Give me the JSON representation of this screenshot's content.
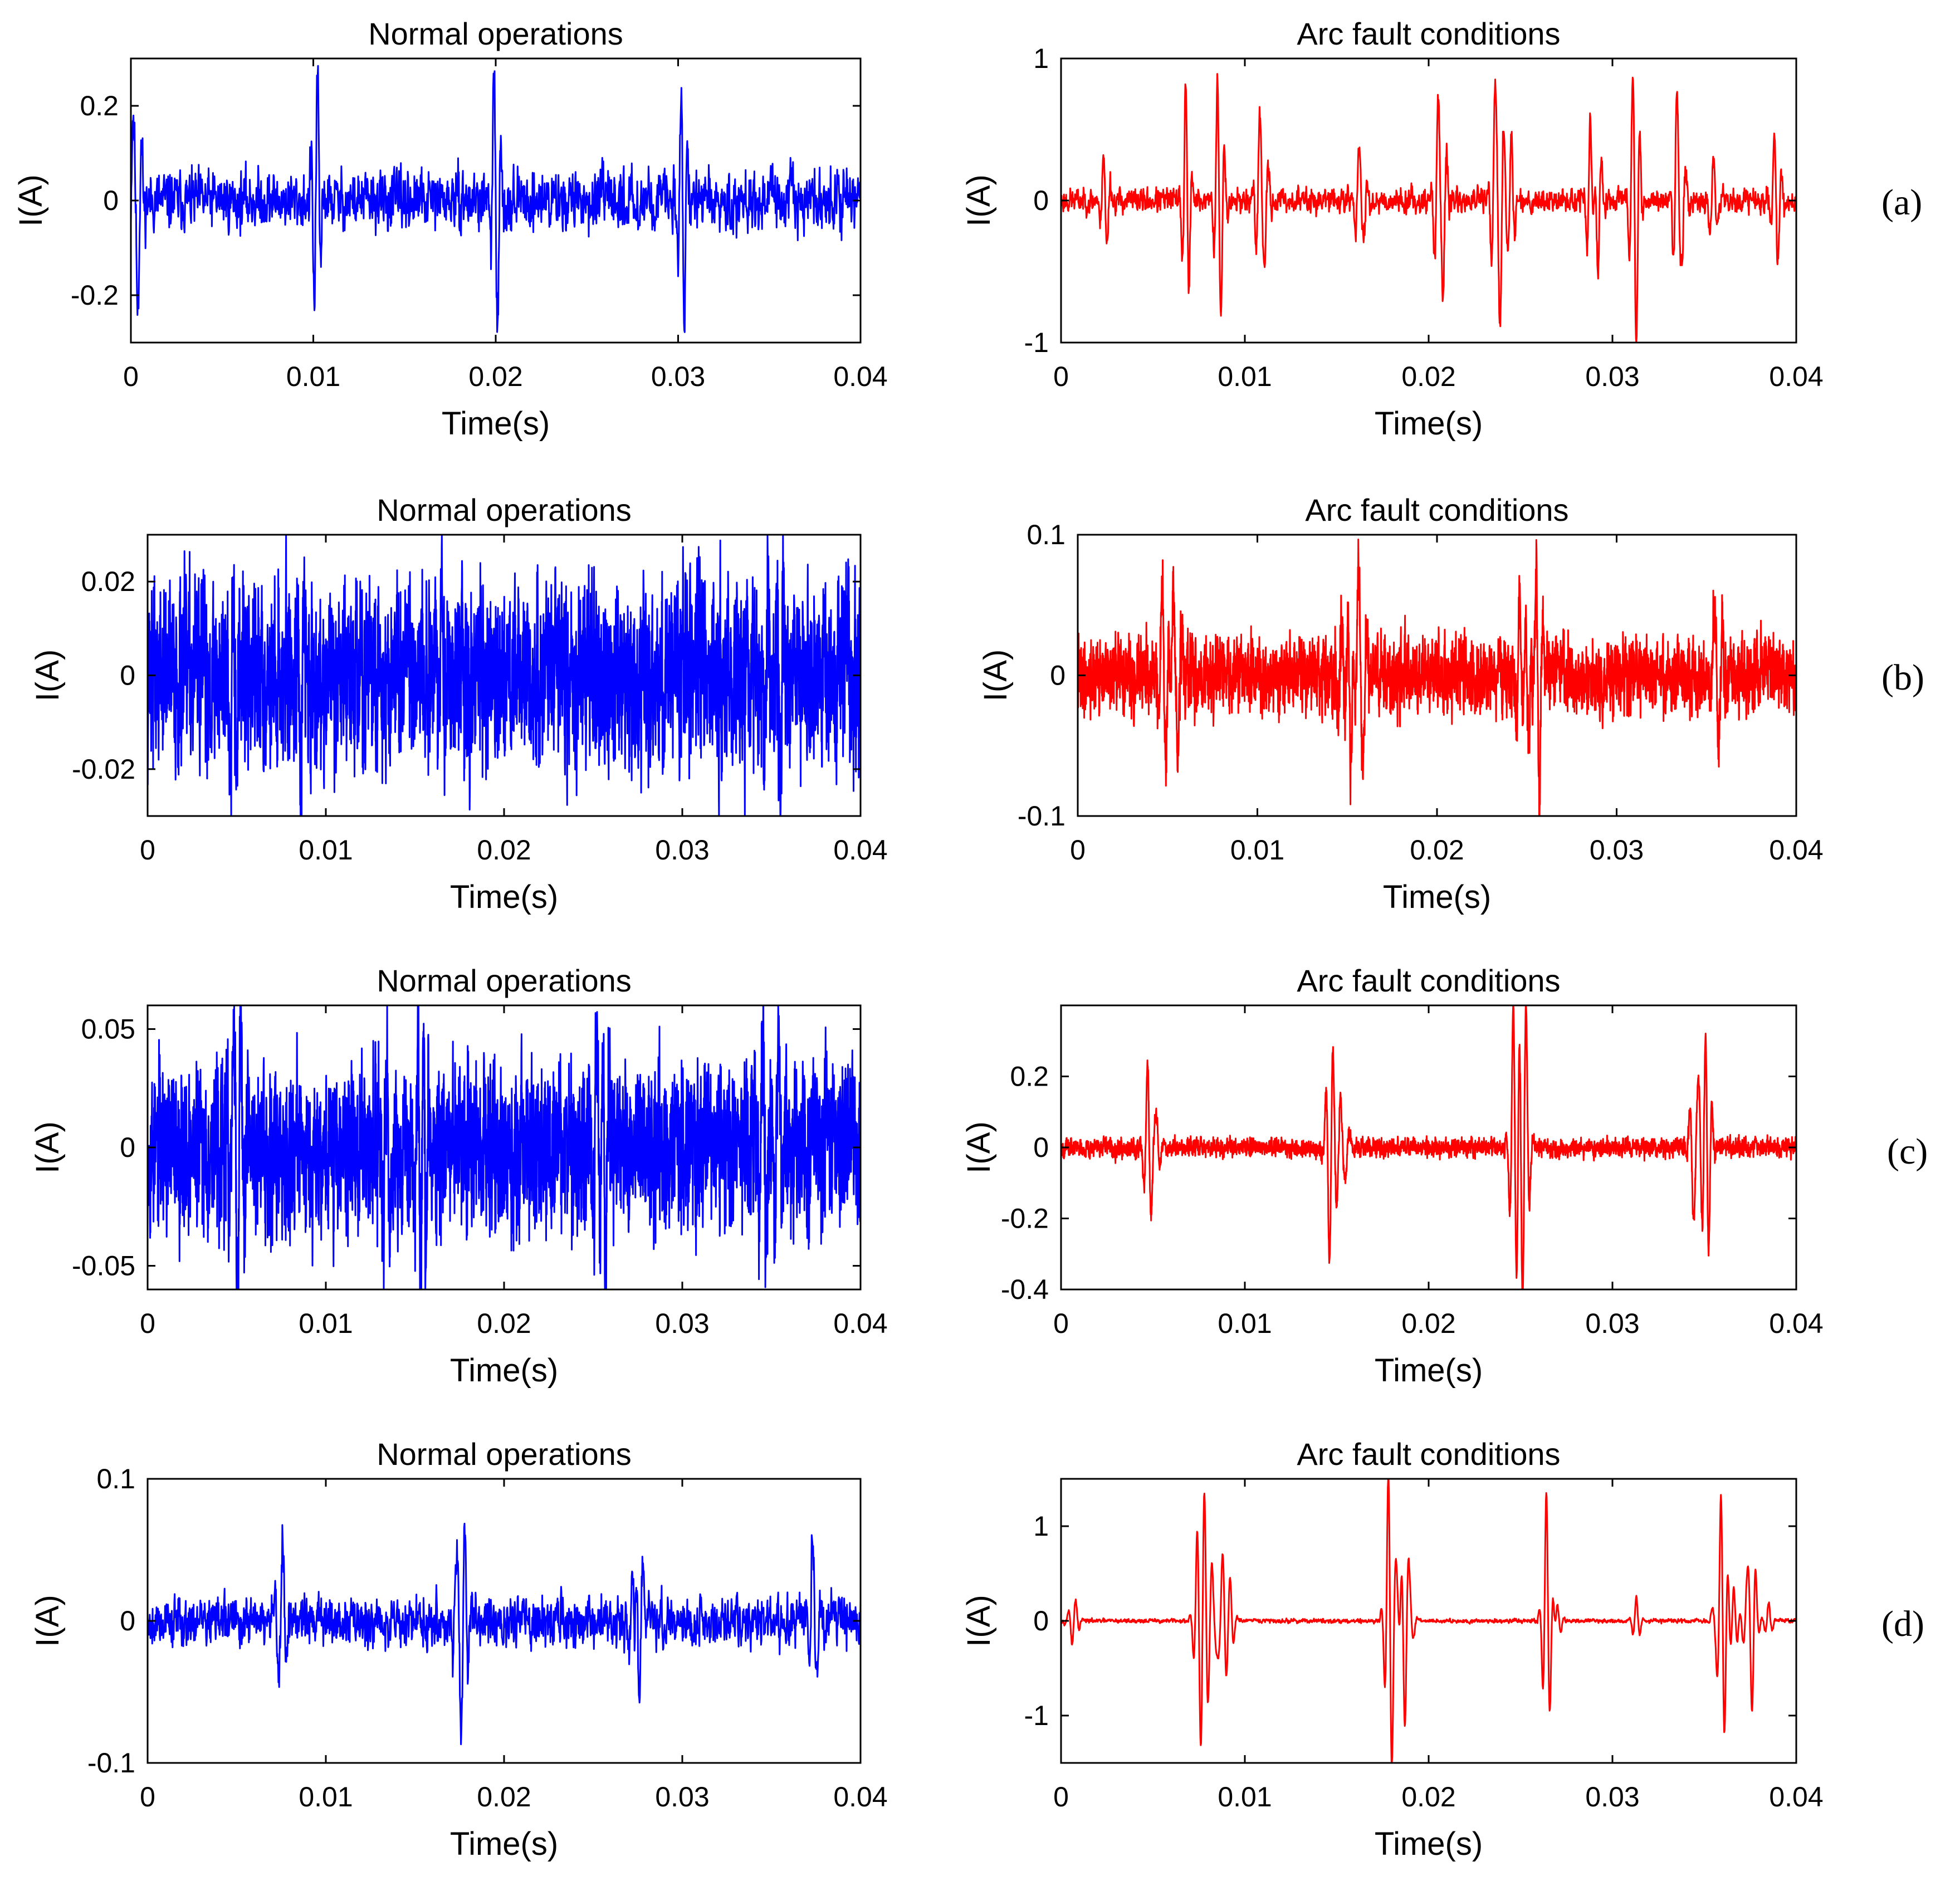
{
  "figure": {
    "background": "#ffffff",
    "normal_color": "#0000ff",
    "fault_color": "#ff0000"
  },
  "chart_data": [
    {
      "type": "line",
      "row": "a",
      "side": "normal",
      "title": "Normal operations",
      "xlabel": "Time(s)",
      "ylabel": "I(A)",
      "xlim": [
        0,
        0.04
      ],
      "ylim": [
        -0.3,
        0.3
      ],
      "xticks": [
        0,
        0.01,
        0.02,
        0.03,
        0.04
      ],
      "xtick_labels": [
        "0",
        "0.01",
        "0.02",
        "0.03",
        "0.04"
      ],
      "yticks": [
        -0.2,
        0,
        0.2
      ],
      "ytick_labels": [
        "-0.2",
        "0",
        "0.2"
      ],
      "color": "#0000ff",
      "signal": {
        "noise": 0.028,
        "seed": 11,
        "step": 2e-05,
        "spikes": [
          [
            0.0001,
            0.17
          ],
          [
            0.0004,
            -0.2
          ],
          [
            0.0102,
            0.24
          ],
          [
            0.0101,
            -0.15
          ],
          [
            0.0199,
            0.15
          ],
          [
            0.0201,
            -0.23
          ],
          [
            0.0302,
            0.22
          ],
          [
            0.0303,
            -0.22
          ]
        ]
      }
    },
    {
      "type": "line",
      "row": "a",
      "side": "fault",
      "title": "Arc fault conditions",
      "xlabel": "Time(s)",
      "ylabel": "I(A)",
      "xlim": [
        0,
        0.04
      ],
      "ylim": [
        -1,
        1
      ],
      "xticks": [
        0,
        0.01,
        0.02,
        0.03,
        0.04
      ],
      "xtick_labels": [
        "0",
        "0.01",
        "0.02",
        "0.03",
        "0.04"
      ],
      "yticks": [
        -1,
        0,
        1
      ],
      "ytick_labels": [
        "-1",
        "0",
        "1"
      ],
      "color": "#ff0000",
      "signal": {
        "noise": 0.04,
        "seed": 23,
        "step": 2e-05,
        "spikes": [
          [
            0.0023,
            0.22
          ],
          [
            0.0025,
            -0.2
          ],
          [
            0.0068,
            0.78
          ],
          [
            0.0069,
            -0.38
          ],
          [
            0.0085,
            0.48
          ],
          [
            0.0087,
            -0.58
          ],
          [
            0.0108,
            0.62
          ],
          [
            0.0111,
            -0.35
          ],
          [
            0.0162,
            0.35
          ],
          [
            0.0165,
            -0.22
          ],
          [
            0.0205,
            0.7
          ],
          [
            0.0208,
            -0.6
          ],
          [
            0.0236,
            0.75
          ],
          [
            0.0239,
            -0.85
          ],
          [
            0.0245,
            0.5
          ],
          [
            0.0288,
            0.62
          ],
          [
            0.0292,
            -0.55
          ],
          [
            0.0311,
            0.5
          ],
          [
            0.0313,
            -0.75
          ],
          [
            0.0335,
            0.72
          ],
          [
            0.0338,
            -0.38
          ],
          [
            0.0355,
            0.3
          ],
          [
            0.0388,
            0.3
          ],
          [
            0.039,
            -0.25
          ]
        ]
      }
    },
    {
      "type": "line",
      "row": "b",
      "side": "normal",
      "title": "Normal operations",
      "xlabel": "Time(s)",
      "ylabel": "I(A)",
      "xlim": [
        0,
        0.04
      ],
      "ylim": [
        -0.03,
        0.03
      ],
      "xticks": [
        0,
        0.01,
        0.02,
        0.03,
        0.04
      ],
      "xtick_labels": [
        "0",
        "0.01",
        "0.02",
        "0.03",
        "0.04"
      ],
      "yticks": [
        -0.02,
        0,
        0.02
      ],
      "ytick_labels": [
        "-0.02",
        "0",
        "0.02"
      ],
      "color": "#0000ff",
      "signal": {
        "noise": 0.009,
        "seed": 37,
        "step": 1e-05,
        "spikes": [
          [
            0.0048,
            0.021
          ],
          [
            0.0086,
            -0.021
          ],
          [
            0.0165,
            0.02
          ],
          [
            0.0348,
            0.02
          ],
          [
            0.0355,
            -0.019
          ]
        ]
      }
    },
    {
      "type": "line",
      "row": "b",
      "side": "fault",
      "title": "Arc fault conditions",
      "xlabel": "Time(s)",
      "ylabel": "I(A)",
      "xlim": [
        0,
        0.04
      ],
      "ylim": [
        -0.1,
        0.1
      ],
      "xticks": [
        0,
        0.01,
        0.02,
        0.03,
        0.04
      ],
      "xtick_labels": [
        "0",
        "0.01",
        "0.02",
        "0.03",
        "0.04"
      ],
      "yticks": [
        -0.1,
        0,
        0.1
      ],
      "ytick_labels": [
        "-0.1",
        "0",
        "0.1"
      ],
      "color": "#ff0000",
      "signal": {
        "noise": 0.012,
        "seed": 41,
        "step": 1e-05,
        "spikes": [
          [
            0.0047,
            0.035
          ],
          [
            0.0049,
            -0.05
          ],
          [
            0.0053,
            0.064
          ],
          [
            0.0056,
            -0.045
          ],
          [
            0.0147,
            0.04
          ],
          [
            0.0152,
            -0.06
          ],
          [
            0.0156,
            0.07
          ],
          [
            0.0159,
            -0.063
          ],
          [
            0.0246,
            0.052
          ],
          [
            0.0251,
            -0.045
          ],
          [
            0.0255,
            0.045
          ],
          [
            0.0257,
            -0.055
          ],
          [
            0.0354,
            0.035
          ],
          [
            0.0357,
            -0.058
          ]
        ]
      }
    },
    {
      "type": "line",
      "row": "c",
      "side": "normal",
      "title": "Normal operations",
      "xlabel": "Time(s)",
      "ylabel": "I(A)",
      "xlim": [
        0,
        0.04
      ],
      "ylim": [
        -0.06,
        0.06
      ],
      "xticks": [
        0,
        0.01,
        0.02,
        0.03,
        0.04
      ],
      "xtick_labels": [
        "0",
        "0.01",
        "0.02",
        "0.03",
        "0.04"
      ],
      "yticks": [
        -0.05,
        0,
        0.05
      ],
      "ytick_labels": [
        "-0.05",
        "0",
        "0.05"
      ],
      "color": "#0000ff",
      "signal": {
        "noise": 0.016,
        "seed": 53,
        "step": 1e-05,
        "spikes": [
          [
            0.0048,
            0.04
          ],
          [
            0.0052,
            0.054
          ],
          [
            0.0051,
            -0.045
          ],
          [
            0.0134,
            0.045
          ],
          [
            0.0152,
            0.044
          ],
          [
            0.0153,
            -0.06
          ],
          [
            0.0156,
            -0.045
          ],
          [
            0.0252,
            0.045
          ],
          [
            0.0257,
            -0.055
          ],
          [
            0.0345,
            0.045
          ],
          [
            0.0354,
            0.051
          ]
        ]
      }
    },
    {
      "type": "line",
      "row": "c",
      "side": "fault",
      "title": "Arc fault conditions",
      "xlabel": "Time(s)",
      "ylabel": "I(A)",
      "xlim": [
        0,
        0.04
      ],
      "ylim": [
        -0.4,
        0.4
      ],
      "xticks": [
        0,
        0.01,
        0.02,
        0.03,
        0.04
      ],
      "xtick_labels": [
        "0",
        "0.01",
        "0.02",
        "0.03",
        "0.04"
      ],
      "yticks": [
        -0.4,
        -0.2,
        0,
        0.2
      ],
      "ytick_labels": [
        "-0.4",
        "-0.2",
        "0",
        "0.2"
      ],
      "color": "#ff0000",
      "signal": {
        "noise": 0.012,
        "seed": 67,
        "step": 1e-05,
        "spikes": [
          [
            0.0047,
            0.18
          ],
          [
            0.0049,
            -0.09
          ],
          [
            0.0052,
            0.08
          ],
          [
            0.0146,
            -0.25
          ],
          [
            0.0148,
            0.13
          ],
          [
            0.0152,
            0.12
          ],
          [
            0.0155,
            -0.08
          ],
          [
            0.0246,
            0.29
          ],
          [
            0.0248,
            -0.18
          ],
          [
            0.0251,
            -0.31
          ],
          [
            0.0253,
            0.23
          ],
          [
            0.0344,
            -0.2
          ],
          [
            0.0347,
            0.17
          ],
          [
            0.0351,
            0.23
          ],
          [
            0.0352,
            -0.25
          ]
        ]
      }
    },
    {
      "type": "line",
      "row": "d",
      "side": "normal",
      "title": "Normal operations",
      "xlabel": "Time(s)",
      "ylabel": "I(A)",
      "xlim": [
        0,
        0.04
      ],
      "ylim": [
        -0.1,
        0.1
      ],
      "xticks": [
        0,
        0.01,
        0.02,
        0.03,
        0.04
      ],
      "xtick_labels": [
        "0",
        "0.01",
        "0.02",
        "0.03",
        "0.04"
      ],
      "yticks": [
        -0.1,
        0,
        0.1
      ],
      "ytick_labels": [
        "-0.1",
        "0",
        "0.1"
      ],
      "color": "#0000ff",
      "signal": {
        "noise": 0.008,
        "seed": 79,
        "step": 2e-05,
        "spikes": [
          [
            0.0073,
            -0.035
          ],
          [
            0.0076,
            0.048
          ],
          [
            0.0173,
            0.04
          ],
          [
            0.0176,
            -0.055
          ],
          [
            0.0178,
            0.043
          ],
          [
            0.0272,
            0.04
          ],
          [
            0.0276,
            -0.065
          ],
          [
            0.0373,
            0.057
          ],
          [
            0.0376,
            -0.028
          ]
        ]
      }
    },
    {
      "type": "line",
      "row": "d",
      "side": "fault",
      "title": "Arc fault conditions",
      "xlabel": "Time(s)",
      "ylabel": "I(A)",
      "xlim": [
        0,
        0.04
      ],
      "ylim": [
        -1.5,
        1.5
      ],
      "xticks": [
        0,
        0.01,
        0.02,
        0.03,
        0.04
      ],
      "xtick_labels": [
        "0",
        "0.01",
        "0.02",
        "0.03",
        "0.04"
      ],
      "yticks": [
        -1,
        0,
        1
      ],
      "ytick_labels": [
        "-1",
        "0",
        "1"
      ],
      "color": "#ff0000",
      "signal": {
        "noise": 0.01,
        "seed": 97,
        "step": 2e-05,
        "spikes": [
          [
            0.0006,
            -0.18
          ],
          [
            0.0008,
            0.12
          ],
          [
            0.0074,
            0.6
          ],
          [
            0.0076,
            -0.45
          ],
          [
            0.0078,
            1.0
          ],
          [
            0.0082,
            0.5
          ],
          [
            0.0085,
            -0.35
          ],
          [
            0.0088,
            0.65
          ],
          [
            0.0092,
            0.4
          ],
          [
            0.0178,
            1.02
          ],
          [
            0.018,
            -0.95
          ],
          [
            0.0183,
            0.45
          ],
          [
            0.0187,
            -1.15
          ],
          [
            0.019,
            0.3
          ],
          [
            0.0264,
            1.18
          ],
          [
            0.0266,
            -0.3
          ],
          [
            0.027,
            0.2
          ],
          [
            0.0313,
            0.25
          ],
          [
            0.0356,
            -0.2
          ],
          [
            0.0359,
            0.95
          ],
          [
            0.0361,
            -0.65
          ],
          [
            0.0366,
            0.35
          ],
          [
            0.0373,
            0.4
          ],
          [
            0.0376,
            -0.95
          ],
          [
            0.0385,
            0.2
          ]
        ]
      }
    }
  ],
  "row_labels": [
    "(a)",
    "(b)",
    "(c)",
    "(d)"
  ]
}
